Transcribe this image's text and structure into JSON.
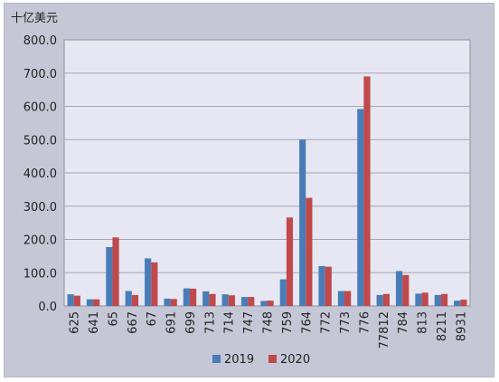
{
  "chart_data": {
    "type": "bar",
    "unit_label": "十亿美元",
    "categories": [
      "625",
      "641",
      "65",
      "667",
      "67",
      "691",
      "699",
      "713",
      "714",
      "747",
      "748",
      "759",
      "764",
      "772",
      "773",
      "776",
      "77812",
      "784",
      "813",
      "8211",
      "8931"
    ],
    "series": [
      {
        "name": "2019",
        "color": "#4a7db8",
        "values": [
          35,
          20,
          177,
          45,
          143,
          22,
          53,
          44,
          35,
          27,
          15,
          80,
          500,
          120,
          45,
          592,
          33,
          105,
          37,
          33,
          16
        ]
      },
      {
        "name": "2020",
        "color": "#c0494b",
        "values": [
          31,
          20,
          206,
          33,
          131,
          21,
          52,
          36,
          32,
          27,
          16,
          266,
          325,
          118,
          45,
          690,
          36,
          93,
          40,
          36,
          19
        ]
      }
    ],
    "y_ticks": [
      "0.0",
      "100.0",
      "200.0",
      "300.0",
      "400.0",
      "500.0",
      "600.0",
      "700.0",
      "800.0"
    ],
    "ylim": [
      0,
      800
    ],
    "grid": true,
    "legend_position": "bottom"
  }
}
